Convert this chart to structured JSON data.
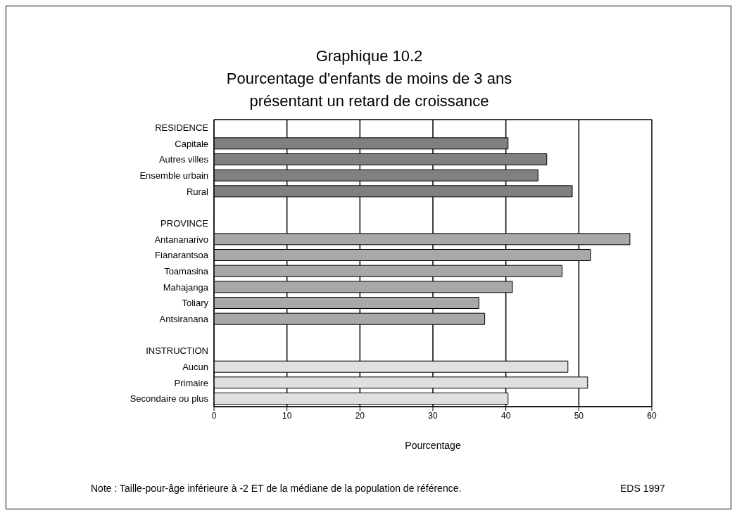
{
  "chart_data": {
    "type": "bar",
    "orientation": "horizontal",
    "title": "Graphique 10.2\nPourcentage d'enfants de moins de 3 ans\nprésentant  un retard de croissance",
    "xlabel": "Pourcentage",
    "categories": [
      "RESIDENCE",
      "Capitale",
      "Autres villes",
      "Ensemble urbain",
      "Rural",
      null,
      "PROVINCE",
      "Antananarivo",
      "Fianarantsoa",
      "Toamasina",
      "Mahajanga",
      "Toliary",
      "Antsiranana",
      null,
      "INSTRUCTION",
      "Aucun",
      "Primaire",
      "Secondaire ou plus"
    ],
    "values": [
      null,
      40.3,
      45.6,
      44.4,
      49.1,
      null,
      null,
      57.0,
      51.6,
      47.7,
      40.9,
      36.3,
      37.1,
      null,
      null,
      48.5,
      51.2,
      40.3
    ],
    "colors": [
      null,
      "#808080",
      "#808080",
      "#808080",
      "#808080",
      null,
      null,
      "#a8a8a8",
      "#a8a8a8",
      "#a8a8a8",
      "#a8a8a8",
      "#a8a8a8",
      "#a8a8a8",
      null,
      null,
      "#e0e0e0",
      "#e0e0e0",
      "#e0e0e0"
    ],
    "xlim": [
      0,
      60
    ],
    "xticks": [
      0,
      10,
      20,
      30,
      40,
      50,
      60
    ],
    "grid": "x",
    "legend": false,
    "annotations": [
      "Note : Taille-pour-âge inférieure à -2 ET de la médiane de la population de référence.",
      "EDS 1997"
    ]
  }
}
